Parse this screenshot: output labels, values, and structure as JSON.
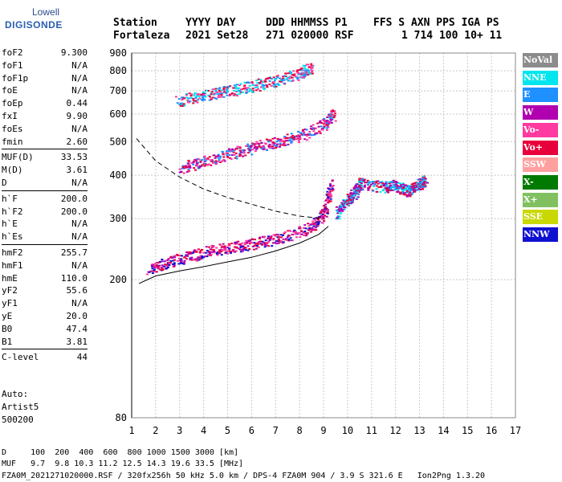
{
  "logo": {
    "line1": "Lowell",
    "line2": "DIGISONDE"
  },
  "header": {
    "labels": [
      "Station",
      "YYYY DAY",
      "DDD HHMMSS P1",
      "FFS S AXN PPS IGA PS"
    ],
    "values": [
      "Fortaleza",
      "2021 Set28",
      "271 020000 RSF",
      "1 714 100 10+ 11"
    ]
  },
  "params": [
    {
      "k": "foF2",
      "v": "9.300"
    },
    {
      "k": "foF1",
      "v": "N/A"
    },
    {
      "k": "foF1p",
      "v": "N/A"
    },
    {
      "k": "foE",
      "v": "N/A"
    },
    {
      "k": "foEp",
      "v": "0.44"
    },
    {
      "k": "fxI",
      "v": "9.90"
    },
    {
      "k": "foEs",
      "v": "N/A"
    },
    {
      "k": "fmin",
      "v": "2.60"
    },
    {
      "k": "MUF(D)",
      "v": "33.53"
    },
    {
      "k": "M(D)",
      "v": "3.61"
    },
    {
      "k": "D",
      "v": "N/A"
    },
    {
      "k": "h`F",
      "v": "200.0"
    },
    {
      "k": "h`F2",
      "v": "200.0"
    },
    {
      "k": "h`E",
      "v": "N/A"
    },
    {
      "k": "h`Es",
      "v": "N/A"
    },
    {
      "k": "hmF2",
      "v": "255.7"
    },
    {
      "k": "hmF1",
      "v": "N/A"
    },
    {
      "k": "hmE",
      "v": "110.0"
    },
    {
      "k": "yF2",
      "v": "55.6"
    },
    {
      "k": "yF1",
      "v": "N/A"
    },
    {
      "k": "yE",
      "v": "20.0"
    },
    {
      "k": "B0",
      "v": "47.4"
    },
    {
      "k": "B1",
      "v": "3.81"
    },
    {
      "k": "C-level",
      "v": "44"
    }
  ],
  "auto": {
    "l1": "Auto:",
    "l2": "Artist5",
    "l3": "500200"
  },
  "legend": [
    {
      "label": "NoVal",
      "color": "#8c8c8c"
    },
    {
      "label": "NNE",
      "color": "#00e5ee"
    },
    {
      "label": "E",
      "color": "#1e90ff"
    },
    {
      "label": "W",
      "color": "#b000b0"
    },
    {
      "label": "Vo-",
      "color": "#ff3aa0"
    },
    {
      "label": "Vo+",
      "color": "#e8003c"
    },
    {
      "label": "SSW",
      "color": "#ffa0a0"
    },
    {
      "label": "X-",
      "color": "#007a00"
    },
    {
      "label": "X+",
      "color": "#80c060"
    },
    {
      "label": "SSE",
      "color": "#c8d800"
    },
    {
      "label": "NNW",
      "color": "#1010d0"
    }
  ],
  "footer": {
    "d_row": "D     100  200  400  600  800 1000 1500 3000 [km]",
    "muf_row": "MUF   9.7  9.8 10.3 11.2 12.5 14.3 19.6 33.5 [MHz]",
    "file_row": "FZA0M_2021271020000.RSF / 320fx256h 50 kHz 5.0 km / DPS-4 FZA0M 904 / 3.9 S 321.6 E   Ion2Png 1.3.20"
  },
  "chart_data": {
    "type": "scatter",
    "title": "",
    "xlabel": "",
    "ylabel": "",
    "xlim": [
      1,
      17
    ],
    "ylim": [
      80,
      900
    ],
    "y_scale": "log",
    "x_ticks": [
      1,
      2,
      3,
      4,
      5,
      6,
      7,
      8,
      9,
      10,
      11,
      12,
      13,
      14,
      15,
      16,
      17
    ],
    "y_ticks": [
      80,
      200,
      300,
      400,
      500,
      600,
      700,
      800,
      900
    ],
    "grid": true,
    "dots_legend_note": "",
    "echo_traces": [
      {
        "name": "F-trace O",
        "color_mix": [
          "#e8003c",
          "#ff3aa0",
          "#b000b0",
          "#1010d0"
        ],
        "x": [
          1.7,
          2.5,
          3.5,
          4.5,
          5.5,
          6.5,
          7.5,
          8.5,
          9.0,
          9.3
        ],
        "y": [
          215,
          225,
          235,
          245,
          250,
          258,
          268,
          285,
          310,
          380
        ]
      },
      {
        "name": "F-trace 2-hop",
        "color_mix": [
          "#1e90ff",
          "#ff3aa0",
          "#b000b0",
          "#e8003c"
        ],
        "x": [
          3.0,
          4.0,
          5.0,
          6.0,
          7.0,
          8.0,
          9.0,
          9.4
        ],
        "y": [
          420,
          440,
          460,
          480,
          500,
          520,
          560,
          600
        ]
      },
      {
        "name": "F-trace 3-hop",
        "color_mix": [
          "#1e90ff",
          "#00e5ee",
          "#ff3aa0",
          "#e8003c"
        ],
        "x": [
          2.9,
          4.0,
          5.0,
          6.0,
          7.0,
          8.0,
          8.5
        ],
        "y": [
          655,
          680,
          700,
          725,
          750,
          790,
          820
        ]
      },
      {
        "name": "spread",
        "color_mix": [
          "#00e5ee",
          "#1e90ff",
          "#b000b0",
          "#e8003c"
        ],
        "x": [
          9.5,
          10.0,
          10.3,
          10.5,
          11.5,
          12.0,
          12.5,
          13.0,
          13.2
        ],
        "y": [
          310,
          340,
          360,
          380,
          370,
          375,
          360,
          380,
          390
        ]
      }
    ],
    "profile_solid": {
      "x": [
        1.3,
        2,
        3,
        4,
        5,
        6,
        7,
        8,
        8.8,
        9.2
      ],
      "y": [
        195,
        205,
        212,
        218,
        225,
        232,
        242,
        255,
        270,
        285
      ]
    },
    "profile_dashed": {
      "x": [
        1.2,
        2,
        3,
        4,
        5,
        6,
        7,
        8,
        9
      ],
      "y": [
        510,
        440,
        395,
        365,
        345,
        330,
        315,
        305,
        300
      ]
    }
  }
}
